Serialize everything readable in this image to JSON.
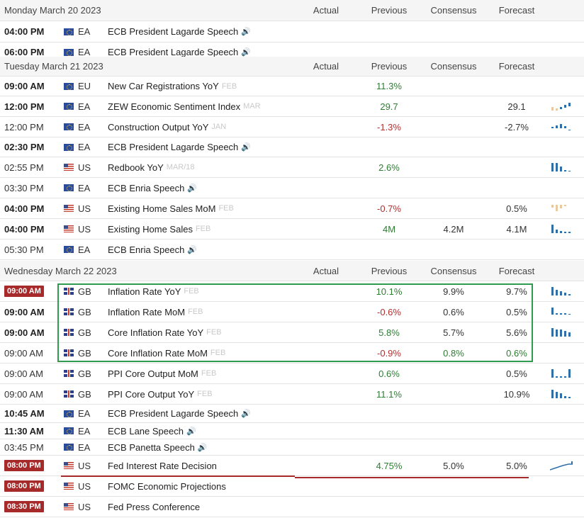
{
  "columns": {
    "actual": "Actual",
    "previous": "Previous",
    "consensus": "Consensus",
    "forecast": "Forecast"
  },
  "days": [
    {
      "date": "Monday March 20 2023",
      "events": [
        {
          "time": "04:00 PM",
          "time_style": "bold",
          "flag": "eu",
          "country": "EA",
          "event": "ECB President Lagarde Speech",
          "ref": "",
          "speech": true,
          "actual": "",
          "previous": "",
          "previous_tone": "neu",
          "consensus": "",
          "forecast": "",
          "spark": ""
        },
        {
          "time": "06:00 PM",
          "time_style": "bold",
          "flag": "eu",
          "country": "EA",
          "event": "ECB President Lagarde Speech",
          "ref": "",
          "speech": true,
          "actual": "",
          "previous": "",
          "previous_tone": "neu",
          "consensus": "",
          "forecast": "",
          "spark": ""
        }
      ]
    },
    {
      "date": "Tuesday March 21 2023",
      "events": [
        {
          "time": "09:00 AM",
          "time_style": "bold",
          "flag": "eu",
          "country": "EU",
          "event": "New Car Registrations YoY",
          "ref": "FEB",
          "speech": false,
          "actual": "",
          "previous": "11.3%",
          "previous_tone": "pos",
          "consensus": "",
          "forecast": "",
          "spark": ""
        },
        {
          "time": "12:00 PM",
          "time_style": "bold",
          "flag": "eu",
          "country": "EA",
          "event": "ZEW Economic Sentiment Index",
          "ref": "MAR",
          "speech": false,
          "actual": "",
          "previous": "29.7",
          "previous_tone": "pos",
          "consensus": "",
          "forecast": "29.1",
          "spark": "zew"
        },
        {
          "time": "12:00 PM",
          "time_style": "normal",
          "flag": "eu",
          "country": "EA",
          "event": "Construction Output YoY",
          "ref": "JAN",
          "speech": false,
          "actual": "",
          "previous": "-1.3%",
          "previous_tone": "neg",
          "consensus": "",
          "forecast": "-2.7%",
          "spark": "constr"
        },
        {
          "time": "02:30 PM",
          "time_style": "bold",
          "flag": "eu",
          "country": "EA",
          "event": "ECB President Lagarde Speech",
          "ref": "",
          "speech": true,
          "actual": "",
          "previous": "",
          "previous_tone": "neu",
          "consensus": "",
          "forecast": "",
          "spark": ""
        },
        {
          "time": "02:55 PM",
          "time_style": "normal",
          "flag": "us",
          "country": "US",
          "event": "Redbook YoY",
          "ref": "MAR/18",
          "speech": false,
          "actual": "",
          "previous": "2.6%",
          "previous_tone": "pos",
          "consensus": "",
          "forecast": "",
          "spark": "redbook"
        },
        {
          "time": "03:30 PM",
          "time_style": "normal",
          "flag": "eu",
          "country": "EA",
          "event": "ECB Enria Speech",
          "ref": "",
          "speech": true,
          "actual": "",
          "previous": "",
          "previous_tone": "neu",
          "consensus": "",
          "forecast": "",
          "spark": ""
        },
        {
          "time": "04:00 PM",
          "time_style": "bold",
          "flag": "us",
          "country": "US",
          "event": "Existing Home Sales MoM",
          "ref": "FEB",
          "speech": false,
          "actual": "",
          "previous": "-0.7%",
          "previous_tone": "neg",
          "consensus": "",
          "forecast": "0.5%",
          "spark": "ehsmom"
        },
        {
          "time": "04:00 PM",
          "time_style": "bold",
          "flag": "us",
          "country": "US",
          "event": "Existing Home Sales",
          "ref": "FEB",
          "speech": false,
          "actual": "",
          "previous": "4M",
          "previous_tone": "pos",
          "consensus": "4.2M",
          "forecast": "4.1M",
          "spark": "ehs"
        },
        {
          "time": "05:30 PM",
          "time_style": "normal",
          "flag": "eu",
          "country": "EA",
          "event": "ECB Enria Speech",
          "ref": "",
          "speech": true,
          "actual": "",
          "previous": "",
          "previous_tone": "neu",
          "consensus": "",
          "forecast": "",
          "spark": ""
        }
      ]
    },
    {
      "date": "Wednesday March 22 2023",
      "events": [
        {
          "time": "09:00 AM",
          "time_style": "badge",
          "flag": "gb",
          "country": "GB",
          "event": "Inflation Rate YoY",
          "ref": "FEB",
          "speech": false,
          "actual": "",
          "previous": "10.1%",
          "previous_tone": "pos",
          "consensus": "9.9%",
          "forecast": "9.7%",
          "spark": "infyoy"
        },
        {
          "time": "09:00 AM",
          "time_style": "bold",
          "flag": "gb",
          "country": "GB",
          "event": "Inflation Rate MoM",
          "ref": "FEB",
          "speech": false,
          "actual": "",
          "previous": "-0.6%",
          "previous_tone": "neg",
          "consensus": "0.6%",
          "forecast": "0.5%",
          "spark": "infmom"
        },
        {
          "time": "09:00 AM",
          "time_style": "bold",
          "flag": "gb",
          "country": "GB",
          "event": "Core Inflation Rate YoY",
          "ref": "FEB",
          "speech": false,
          "actual": "",
          "previous": "5.8%",
          "previous_tone": "pos",
          "consensus": "5.7%",
          "forecast": "5.6%",
          "spark": "coreyoy"
        },
        {
          "time": "09:00 AM",
          "time_style": "normal",
          "flag": "gb",
          "country": "GB",
          "event": "Core Inflation Rate MoM",
          "ref": "FEB",
          "speech": false,
          "actual": "",
          "previous": "-0.9%",
          "previous_tone": "neg",
          "consensus": "0.8%",
          "forecast": "0.6%",
          "spark": "",
          "consensus_tone": "pos",
          "forecast_tone": "pos"
        },
        {
          "time": "09:00 AM",
          "time_style": "normal",
          "flag": "gb",
          "country": "GB",
          "event": "PPI Core Output MoM",
          "ref": "FEB",
          "speech": false,
          "actual": "",
          "previous": "0.6%",
          "previous_tone": "pos",
          "consensus": "",
          "forecast": "0.5%",
          "spark": "ppimom"
        },
        {
          "time": "09:00 AM",
          "time_style": "normal",
          "flag": "gb",
          "country": "GB",
          "event": "PPI Core Output YoY",
          "ref": "FEB",
          "speech": false,
          "actual": "",
          "previous": "11.1%",
          "previous_tone": "pos",
          "consensus": "",
          "forecast": "10.9%",
          "spark": "ppiyoy"
        },
        {
          "time": "10:45 AM",
          "time_style": "bold",
          "flag": "eu",
          "country": "EA",
          "event": "ECB President Lagarde Speech",
          "ref": "",
          "speech": true,
          "actual": "",
          "previous": "",
          "previous_tone": "neu",
          "consensus": "",
          "forecast": "",
          "spark": ""
        },
        {
          "time": "11:30 AM",
          "time_style": "bold",
          "flag": "eu",
          "country": "EA",
          "event": "ECB Lane Speech",
          "ref": "",
          "speech": true,
          "actual": "",
          "previous": "",
          "previous_tone": "neu",
          "consensus": "",
          "forecast": "",
          "spark": ""
        },
        {
          "time": "03:45 PM",
          "time_style": "normal",
          "flag": "eu",
          "country": "EA",
          "event": "ECB Panetta Speech",
          "ref": "",
          "speech": true,
          "actual": "",
          "previous": "",
          "previous_tone": "neu",
          "consensus": "",
          "forecast": "",
          "spark": ""
        },
        {
          "time": "08:00 PM",
          "time_style": "badge",
          "flag": "us",
          "country": "US",
          "event": "Fed Interest Rate Decision",
          "ref": "",
          "speech": false,
          "actual": "",
          "previous": "4.75%",
          "previous_tone": "pos",
          "consensus": "5.0%",
          "forecast": "5.0%",
          "spark": "fed"
        },
        {
          "time": "08:00 PM",
          "time_style": "badge",
          "flag": "us",
          "country": "US",
          "event": "FOMC Economic Projections",
          "ref": "",
          "speech": false,
          "actual": "",
          "previous": "",
          "previous_tone": "neu",
          "consensus": "",
          "forecast": "",
          "spark": ""
        },
        {
          "time": "08:30 PM",
          "time_style": "badge",
          "flag": "us",
          "country": "US",
          "event": "Fed Press Conference",
          "ref": "",
          "speech": false,
          "actual": "",
          "previous": "",
          "previous_tone": "neu",
          "consensus": "",
          "forecast": "",
          "spark": ""
        }
      ]
    }
  ],
  "colors": {
    "positive": "#2e7d32",
    "negative": "#b03030",
    "badge": "#a62a2a",
    "highlight_box": "#2e9b4f",
    "spark_blue": "#2f6fa8",
    "spark_tan": "#e8c9a0"
  },
  "icons": {
    "speech": "speaker-icon",
    "flag_eu": "eu-flag-icon",
    "flag_us": "us-flag-icon",
    "flag_gb": "gb-flag-icon"
  }
}
